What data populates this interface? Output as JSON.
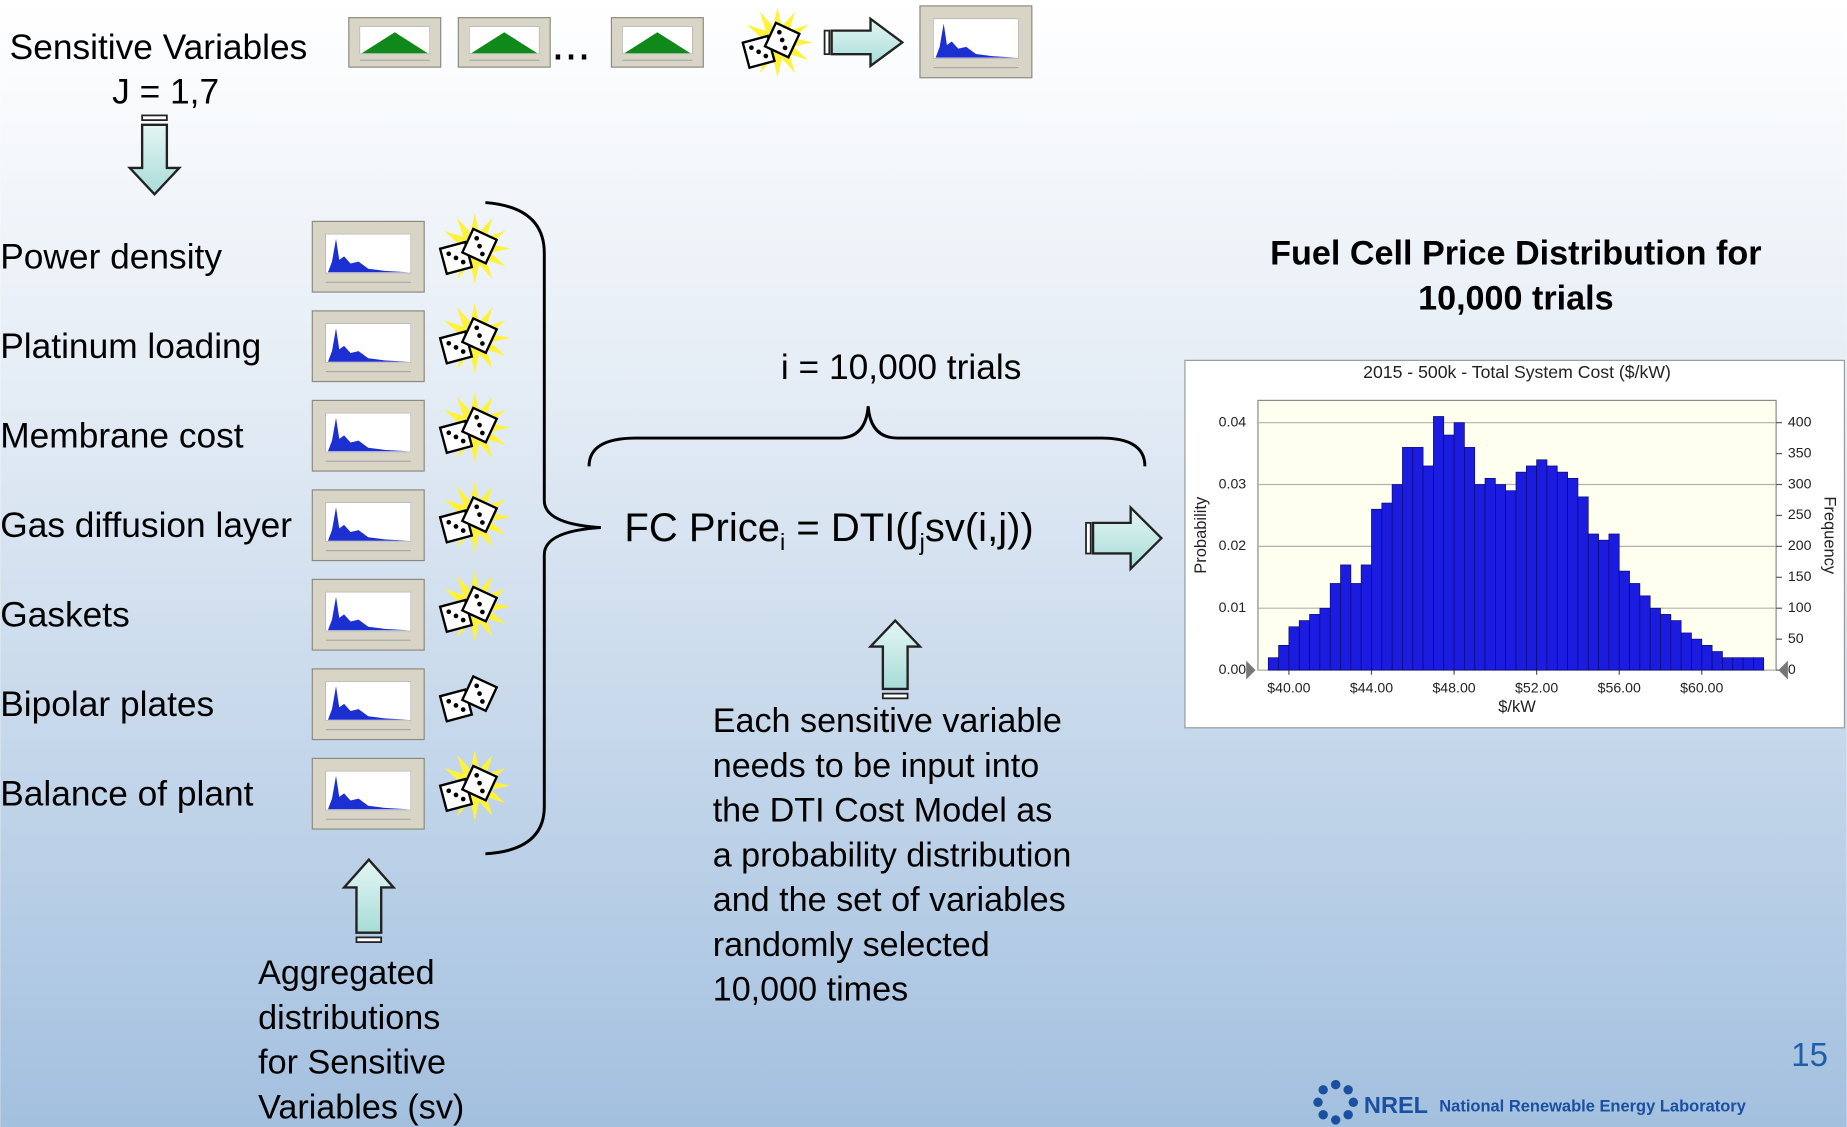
{
  "header": {
    "sensitive_variables": "Sensitive Variables",
    "index": "J = 1,7",
    "ellipsis": "..."
  },
  "variables": [
    "Power density",
    "Platinum loading",
    "Membrane cost",
    "Gas diffusion layer",
    "Gaskets",
    "Bipolar plates",
    "Balance of plant"
  ],
  "aggregated_label": [
    "Aggregated",
    "distributions",
    "for Sensitive",
    "Variables (sv)"
  ],
  "trials_label": "i = 10,000 trials",
  "formula": {
    "lhs": "FC Price",
    "lhs_subscript": "i",
    "rhs": " = DTI(∫",
    "rhs_subscript": "j",
    "rhs_end": "sv(i,j))"
  },
  "explanation": [
    "Each sensitive variable",
    "needs to be input into",
    "the DTI Cost Model as",
    "a probability distribution",
    "and the set of variables",
    "randomly selected",
    "10,000 times"
  ],
  "result_heading": [
    "Fuel Cell Price Distribution for",
    "10,000 trials"
  ],
  "chart_data": {
    "type": "histogram",
    "title": "2015 - 500k - Total System Cost ($/kW)",
    "x_label": "$/kW",
    "y_label": "Probability",
    "y2_label": "Frequency",
    "bins": [
      39,
      39.5,
      40,
      40.5,
      41,
      41.5,
      42,
      42.5,
      43,
      43.5,
      44,
      44.5,
      45,
      45.5,
      46,
      46.5,
      47,
      47.5,
      48,
      48.5,
      49,
      49.5,
      50,
      50.5,
      51,
      51.5,
      52,
      52.5,
      53,
      53.5,
      54,
      54.5,
      55,
      55.5,
      56,
      56.5,
      57,
      57.5,
      58,
      58.5,
      59,
      59.5,
      60,
      60.5,
      61,
      61.5,
      62,
      62.5,
      63
    ],
    "values": [
      0.002,
      0.004,
      0.007,
      0.008,
      0.009,
      0.01,
      0.014,
      0.017,
      0.014,
      0.017,
      0.026,
      0.027,
      0.03,
      0.036,
      0.036,
      0.033,
      0.041,
      0.038,
      0.04,
      0.036,
      0.03,
      0.031,
      0.03,
      0.029,
      0.032,
      0.033,
      0.034,
      0.033,
      0.032,
      0.031,
      0.028,
      0.022,
      0.021,
      0.022,
      0.016,
      0.014,
      0.012,
      0.01,
      0.009,
      0.008,
      0.006,
      0.005,
      0.004,
      0.003,
      0.002,
      0.002,
      0.002,
      0.002
    ],
    "color": "#1c1ce0",
    "xlim": [
      38.5,
      63.6
    ],
    "xticks": [
      {
        "value": 40,
        "label": "$40.00"
      },
      {
        "value": 44,
        "label": "$44.00"
      },
      {
        "value": 48,
        "label": "$48.00"
      },
      {
        "value": 52,
        "label": "$52.00"
      },
      {
        "value": 56,
        "label": "$56.00"
      },
      {
        "value": 60,
        "label": "$60.00"
      }
    ],
    "ylim": [
      0,
      0.0436
    ],
    "yticks": [
      {
        "value": 0,
        "label": "0.00"
      },
      0.01,
      0.02,
      0.03,
      0.04
    ],
    "y2lim": [
      0,
      436
    ],
    "y2ticks": [
      0,
      50,
      100,
      150,
      200,
      250,
      300,
      350,
      400
    ],
    "grid": true
  },
  "page_number": "15",
  "footer": {
    "logo": "NREL",
    "organization": "National Renewable Energy Laboratory"
  }
}
